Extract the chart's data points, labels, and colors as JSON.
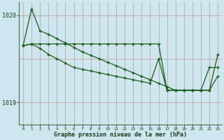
{
  "bg_color": "#cce8ee",
  "vgrid_color": "#c8a0a0",
  "hgrid_color": "#b0d0d8",
  "line_color": "#1a5c1a",
  "xlabel_label": "Graphe pression niveau de la mer (hPa)",
  "xlim": [
    -0.5,
    23.5
  ],
  "ylim": [
    1018.75,
    1020.15
  ],
  "yticks": [
    1019.0,
    1020.0
  ],
  "ytick_labels": [
    "1019",
    "1020"
  ],
  "xticks": [
    0,
    1,
    2,
    3,
    4,
    5,
    6,
    7,
    8,
    9,
    10,
    11,
    12,
    13,
    14,
    15,
    16,
    17,
    18,
    19,
    20,
    21,
    22,
    23
  ],
  "series1_y": [
    1019.65,
    1020.07,
    1019.82,
    1019.78,
    1019.73,
    1019.68,
    1019.63,
    1019.58,
    1019.54,
    1019.5,
    1019.46,
    1019.42,
    1019.38,
    1019.34,
    1019.3,
    1019.26,
    1019.22,
    1019.18,
    1019.14,
    1019.14,
    1019.14,
    1019.14,
    1019.14,
    1019.3
  ],
  "series2_y": [
    1019.65,
    1019.67,
    1019.67,
    1019.67,
    1019.67,
    1019.67,
    1019.67,
    1019.67,
    1019.67,
    1019.67,
    1019.67,
    1019.67,
    1019.67,
    1019.67,
    1019.67,
    1019.67,
    1019.67,
    1019.14,
    1019.14,
    1019.14,
    1019.14,
    1019.14,
    1019.14,
    1019.55
  ],
  "series3_y": [
    1019.65,
    1019.67,
    1019.62,
    1019.55,
    1019.5,
    1019.45,
    1019.4,
    1019.38,
    1019.36,
    1019.34,
    1019.32,
    1019.3,
    1019.28,
    1019.26,
    1019.24,
    1019.22,
    1019.5,
    1019.14,
    1019.14,
    1019.14,
    1019.14,
    1019.14,
    1019.4,
    1019.4
  ]
}
